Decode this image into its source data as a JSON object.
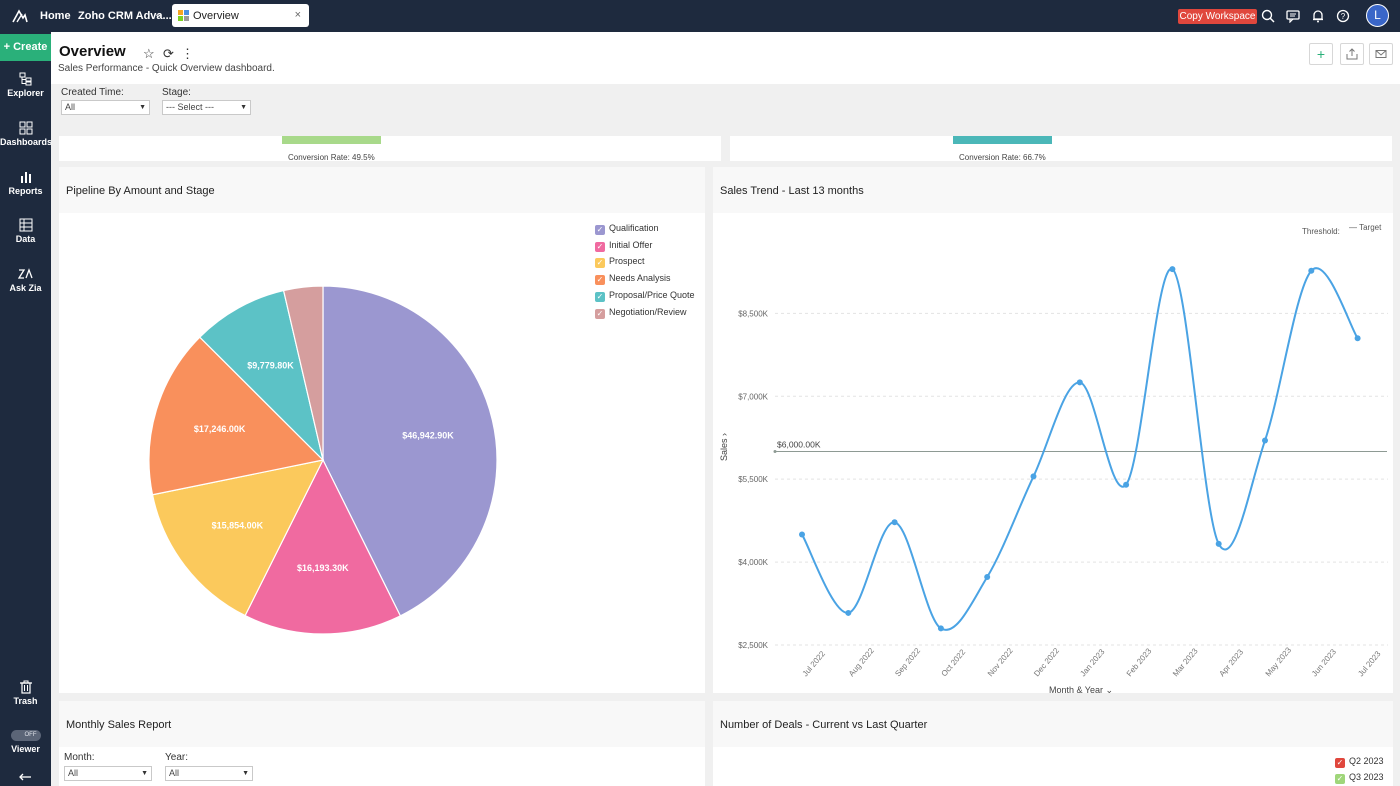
{
  "topbar": {
    "home": "Home",
    "workspace": "Zoho CRM Adva...",
    "tab_label": "Overview",
    "tab_close": "×",
    "copy_workspace": "Copy Workspace",
    "avatar_letter": "L"
  },
  "sidebar": {
    "create": "+ Create",
    "items": [
      {
        "label": "Explorer",
        "icon": "explorer-icon"
      },
      {
        "label": "Dashboards",
        "icon": "dashboards-icon"
      },
      {
        "label": "Reports",
        "icon": "reports-icon"
      },
      {
        "label": "Data",
        "icon": "data-icon"
      },
      {
        "label": "Ask Zia",
        "icon": "ask-zia-icon"
      }
    ],
    "trash": "Trash",
    "viewer": "Viewer",
    "viewer_toggle": "OFF"
  },
  "header": {
    "title": "Overview",
    "subtitle": "Sales Performance - Quick Overview dashboard."
  },
  "filters": {
    "created_time_label": "Created Time:",
    "created_time_value": "All",
    "stage_label": "Stage:",
    "stage_value": "--- Select ---"
  },
  "top_cards": {
    "left_conversion": "Conversion Rate: 49.5%",
    "right_conversion": "Conversion Rate: 66.7%"
  },
  "pipeline": {
    "title": "Pipeline By Amount and Stage",
    "legend": [
      "Qualification",
      "Initial Offer",
      "Prospect",
      "Needs Analysis",
      "Proposal/Price Quote",
      "Negotiation/Review"
    ],
    "colors": [
      "#9b97d0",
      "#f06aa0",
      "#fbc95c",
      "#f9905c",
      "#5cc2c6",
      "#d59e9e"
    ],
    "slice_labels": [
      "$46,942.90K",
      "$16,193.30K",
      "$15,854.00K",
      "$17,246.00K",
      "$9,779.80K",
      ""
    ],
    "values": [
      46942.9,
      16193.3,
      15854.0,
      17246.0,
      9779.8,
      4000
    ]
  },
  "sales_trend": {
    "title": "Sales Trend - Last 13 months",
    "threshold_label": "Threshold:",
    "target_label": "Target",
    "threshold_value_label": "$6,000.00K",
    "ylabel": "Sales",
    "xlabel": "Month & Year",
    "yticks": [
      "$2,500K",
      "$4,000K",
      "$5,500K",
      "$7,000K",
      "$8,500K"
    ],
    "months": [
      "Jul 2022",
      "Aug 2022",
      "Sep 2022",
      "Oct 2022",
      "Nov 2022",
      "Dec 2022",
      "Jan 2023",
      "Feb 2023",
      "Mar 2023",
      "Apr 2023",
      "May 2023",
      "Jun 2023",
      "Jul 2023"
    ]
  },
  "chart_data": {
    "type": "line",
    "title": "Sales Trend - Last 13 months",
    "xlabel": "Month & Year",
    "ylabel": "Sales",
    "x": [
      "Jul 2022",
      "Aug 2022",
      "Sep 2022",
      "Oct 2022",
      "Nov 2022",
      "Dec 2022",
      "Jan 2023",
      "Feb 2023",
      "Mar 2023",
      "Apr 2023",
      "May 2023",
      "Jun 2023",
      "Jul 2023"
    ],
    "values": [
      4500,
      3080,
      4720,
      2800,
      3730,
      5550,
      7250,
      5400,
      9300,
      4330,
      6200,
      9270,
      8050
    ],
    "threshold": 6000,
    "ylim": [
      2500,
      9700
    ]
  },
  "monthly_sales": {
    "title": "Monthly Sales Report",
    "month_label": "Month:",
    "month_value": "All",
    "year_label": "Year:",
    "year_value": "All"
  },
  "deals": {
    "title": "Number of Deals - Current vs Last Quarter",
    "legend": [
      "Q2 2023",
      "Q3 2023"
    ],
    "colors": [
      "#e0473d",
      "#9fd67a"
    ]
  }
}
